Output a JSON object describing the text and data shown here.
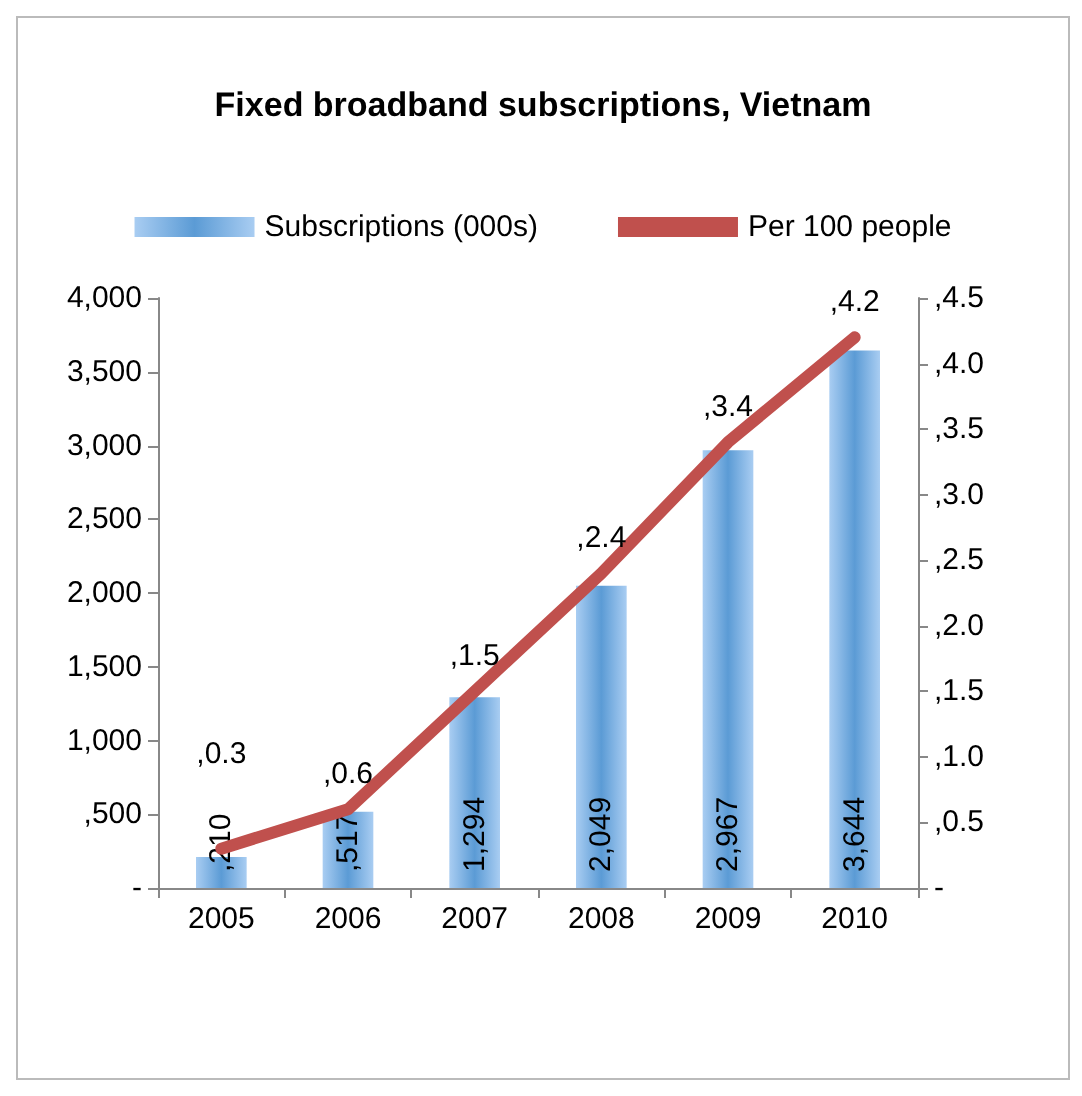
{
  "chart_data": {
    "type": "bar",
    "title": "Fixed broadband subscriptions, Vietnam",
    "categories": [
      "2005",
      "2006",
      "2007",
      "2008",
      "2009",
      "2010"
    ],
    "series": [
      {
        "name": "Subscriptions (000s)",
        "color": "#5b9bd5",
        "values": [
          210,
          517,
          1294,
          2049,
          2967,
          3644
        ],
        "value_labels": [
          ",210",
          ",517",
          "1,294",
          "2,049",
          "2,967",
          "3,644"
        ]
      },
      {
        "name": "Per 100 people",
        "type": "line",
        "axis": "y2",
        "color": "#c0504d",
        "values": [
          0.3,
          0.6,
          1.5,
          2.4,
          3.4,
          4.2
        ],
        "value_labels": [
          ",0.3",
          ",0.6",
          ",1.5",
          ",2.4",
          ",3.4",
          ",4.2"
        ]
      }
    ],
    "ylim": [
      0,
      4000
    ],
    "yticks": [
      {
        "value": 0,
        "label": "-"
      },
      {
        "value": 500,
        "label": ",500"
      },
      {
        "value": 1000,
        "label": "1,000"
      },
      {
        "value": 1500,
        "label": "1,500"
      },
      {
        "value": 2000,
        "label": "2,000"
      },
      {
        "value": 2500,
        "label": "2,500"
      },
      {
        "value": 3000,
        "label": "3,000"
      },
      {
        "value": 3500,
        "label": "3,500"
      },
      {
        "value": 4000,
        "label": "4,000"
      }
    ],
    "y2lim": [
      0,
      4.5
    ],
    "y2ticks": [
      {
        "value": 0,
        "label": "-"
      },
      {
        "value": 0.5,
        "label": ",0.5"
      },
      {
        "value": 1,
        "label": ",1.0"
      },
      {
        "value": 1.5,
        "label": ",1.5"
      },
      {
        "value": 2,
        "label": ",2.0"
      },
      {
        "value": 2.5,
        "label": ",2.5"
      },
      {
        "value": 3,
        "label": ",3.0"
      },
      {
        "value": 3.5,
        "label": ",3.5"
      },
      {
        "value": 4,
        "label": ",4.0"
      },
      {
        "value": 4.5,
        "label": ",4.5"
      }
    ],
    "grid": false,
    "legend": "top",
    "marker": "none",
    "line_style": "solid"
  }
}
